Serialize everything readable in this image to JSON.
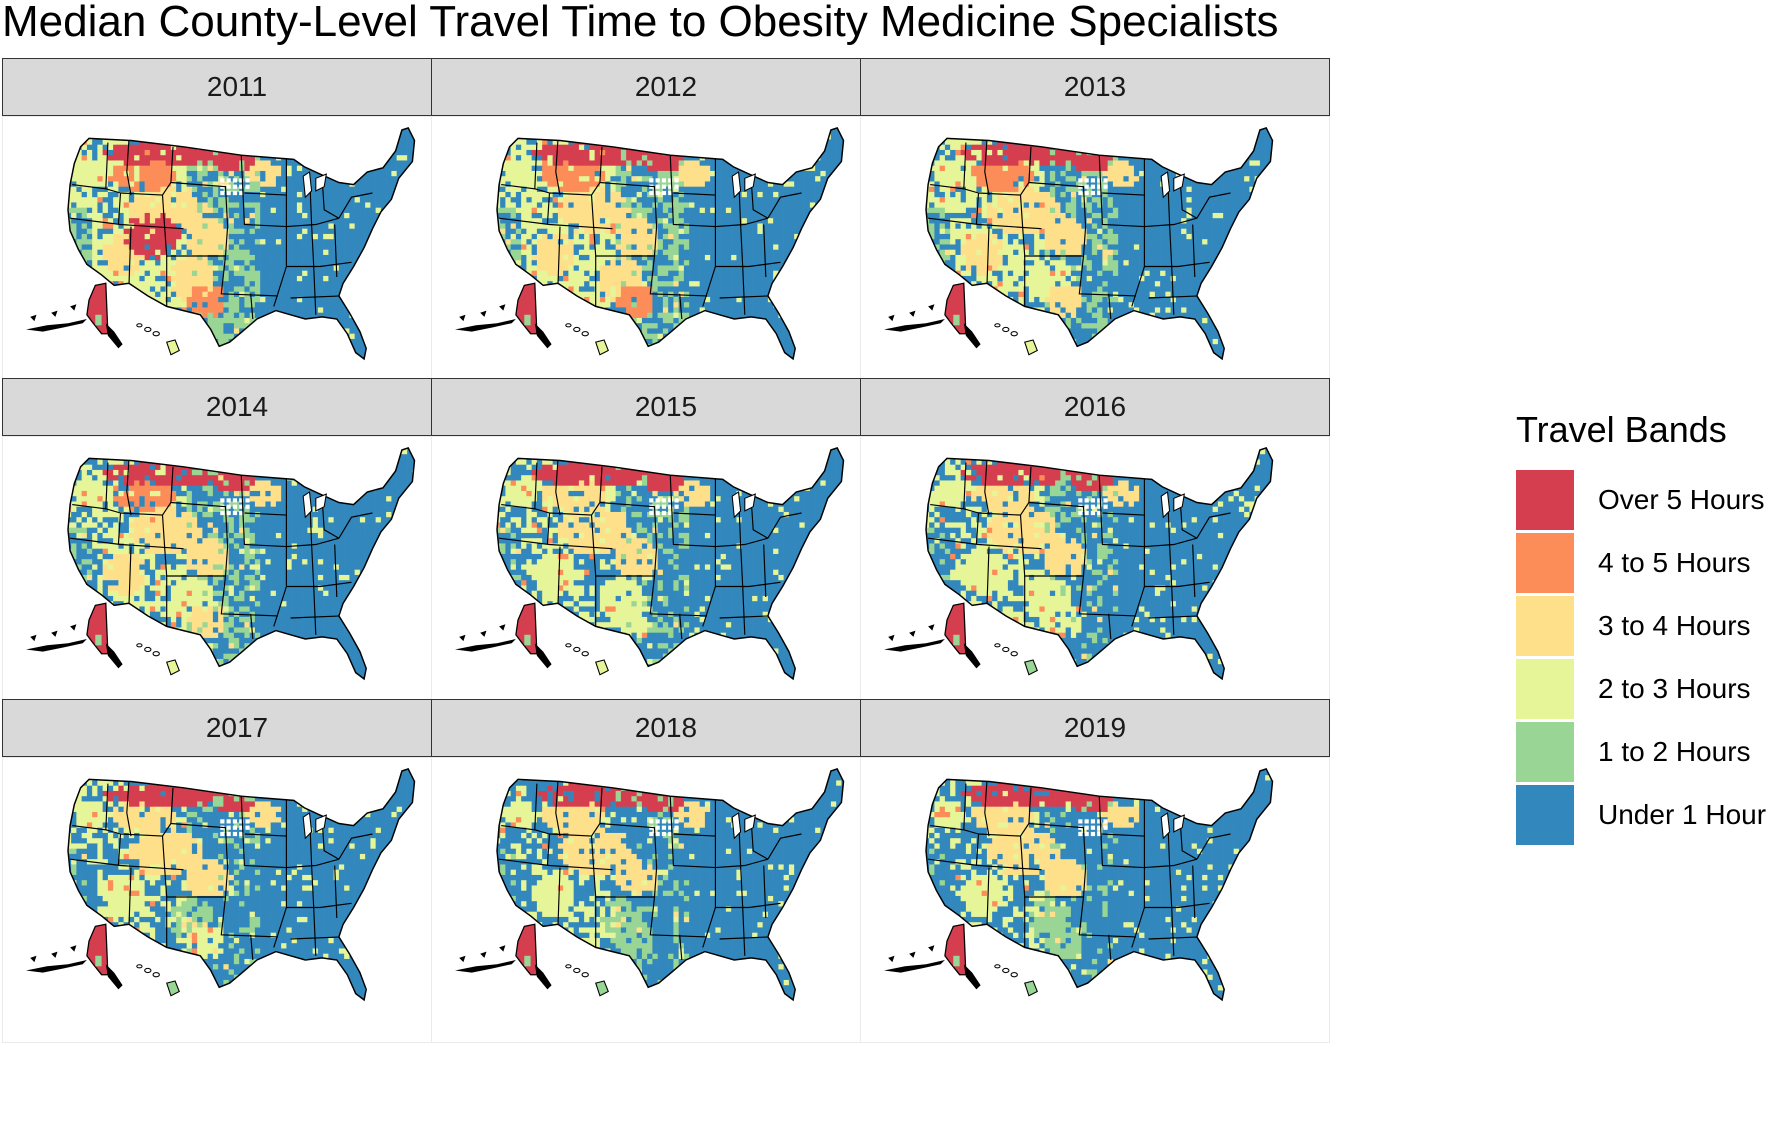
{
  "title": "Median County-Level Travel Time to Obesity Medicine Specialists",
  "legend": {
    "title": "Travel Bands",
    "items": [
      {
        "label": "Over 5 Hours",
        "color": "#d53e4f"
      },
      {
        "label": "4 to 5 Hours",
        "color": "#fc8d59"
      },
      {
        "label": "3 to 4 Hours",
        "color": "#fee08b"
      },
      {
        "label": "2 to 3 Hours",
        "color": "#e6f598"
      },
      {
        "label": "1 to 2 Hours",
        "color": "#99d594"
      },
      {
        "label": "Under 1 Hour",
        "color": "#3288bd"
      }
    ]
  },
  "facets": [
    {
      "year": "2011"
    },
    {
      "year": "2012"
    },
    {
      "year": "2013"
    },
    {
      "year": "2014"
    },
    {
      "year": "2015"
    },
    {
      "year": "2016"
    },
    {
      "year": "2017"
    },
    {
      "year": "2018"
    },
    {
      "year": "2019"
    }
  ],
  "colors": {
    "strip_bg": "#d9d9d9",
    "state_border": "#000000",
    "panel_border": "#ebebeb"
  }
}
